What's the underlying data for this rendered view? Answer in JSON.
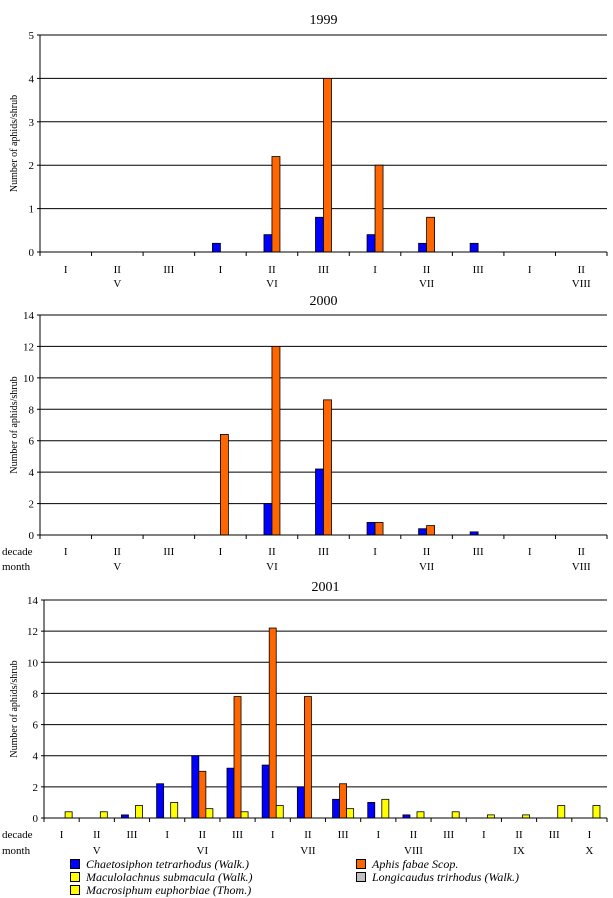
{
  "axis_ylabel": "Number of aphids/shrub",
  "row_labels": {
    "decade": "decade",
    "month": "month"
  },
  "series_info": [
    {
      "name": "Chaetosiphon tetrarhodus (Walk.)",
      "color": "#0000ff"
    },
    {
      "name": "Aphis fabae Scop.",
      "color": "#ff6600"
    },
    {
      "name": "Maculolachnus submacula (Walk.)",
      "color": "#ffff00"
    },
    {
      "name": "Longicaudus trirhodus (Walk.)",
      "color": "#c0c0c0"
    },
    {
      "name": "Macrosiphum euphorbiae (Thom.)",
      "color": "#ffff00"
    }
  ],
  "legend": [
    {
      "label": "Chaetosiphon tetrarhodus (Walk.)",
      "color": "#0000ff"
    },
    {
      "label": "Aphis fabae Scop.",
      "color": "#ff6600"
    },
    {
      "label": "Maculolachnus submacula (Walk.)",
      "color": "#ffff00"
    },
    {
      "label": "Longicaudus trirhodus (Walk.)",
      "color": "#c0c0c0"
    },
    {
      "label": "Macrosiphum euphorbiae (Thom.)",
      "color": "#ffff00"
    }
  ],
  "chart_data": [
    {
      "type": "bar",
      "title": "1999",
      "ylabel": "Number of aphids/shrub",
      "ylim": [
        0,
        5
      ],
      "yticks": [
        0,
        1,
        2,
        3,
        4,
        5
      ],
      "grid": true,
      "categories": [
        "I",
        "II",
        "III",
        "I",
        "II",
        "III",
        "I",
        "II",
        "III",
        "I",
        "II"
      ],
      "months": [
        {
          "label": "V",
          "index": 1
        },
        {
          "label": "VI",
          "index": 4
        },
        {
          "label": "VII",
          "index": 7
        },
        {
          "label": "VIII",
          "index": 10
        }
      ],
      "show_row_labels": false,
      "series": [
        {
          "series": 0,
          "values": [
            0,
            0,
            0,
            0.2,
            0.4,
            0.8,
            0.4,
            0.2,
            0.2,
            0,
            0
          ]
        },
        {
          "series": 1,
          "values": [
            0,
            0,
            0,
            0,
            2.2,
            4.0,
            2.0,
            0.8,
            0,
            0,
            0
          ]
        }
      ]
    },
    {
      "type": "bar",
      "title": "2000",
      "ylabel": "Number of aphids/shrub",
      "ylim": [
        0,
        14
      ],
      "yticks": [
        0,
        2,
        4,
        6,
        8,
        10,
        12,
        14
      ],
      "grid": true,
      "categories": [
        "I",
        "II",
        "III",
        "I",
        "II",
        "III",
        "I",
        "II",
        "III",
        "I",
        "II"
      ],
      "months": [
        {
          "label": "V",
          "index": 1
        },
        {
          "label": "VI",
          "index": 4
        },
        {
          "label": "VII",
          "index": 7
        },
        {
          "label": "VIII",
          "index": 10
        }
      ],
      "show_row_labels": true,
      "series": [
        {
          "series": 0,
          "values": [
            0,
            0,
            0,
            0,
            2.0,
            4.2,
            0.8,
            0.4,
            0.2,
            0,
            0
          ]
        },
        {
          "series": 1,
          "values": [
            0,
            0,
            0,
            6.4,
            12.0,
            8.6,
            0.8,
            0.6,
            0,
            0,
            0
          ]
        }
      ]
    },
    {
      "type": "bar",
      "title": "2001",
      "ylabel": "Number of aphids/shrub",
      "ylim": [
        0,
        14
      ],
      "yticks": [
        0,
        2,
        4,
        6,
        8,
        10,
        12,
        14
      ],
      "grid": true,
      "categories": [
        "I",
        "II",
        "III",
        "I",
        "II",
        "III",
        "I",
        "II",
        "III",
        "I",
        "II",
        "III",
        "I",
        "II",
        "III",
        "I"
      ],
      "months": [
        {
          "label": "V",
          "index": 1
        },
        {
          "label": "VI",
          "index": 4
        },
        {
          "label": "VII",
          "index": 7
        },
        {
          "label": "VIII",
          "index": 10
        },
        {
          "label": "IX",
          "index": 13
        },
        {
          "label": "X",
          "index": 15
        }
      ],
      "show_row_labels": true,
      "series": [
        {
          "series": 0,
          "values": [
            0,
            0,
            0.2,
            2.2,
            4.0,
            3.2,
            3.4,
            2.0,
            1.2,
            1.0,
            0.2,
            0,
            0,
            0,
            0,
            0
          ]
        },
        {
          "series": 1,
          "values": [
            0,
            0,
            0,
            0,
            3.0,
            7.8,
            12.2,
            7.8,
            2.2,
            0,
            0,
            0,
            0,
            0,
            0,
            0
          ]
        },
        {
          "series": 2,
          "values": [
            0.4,
            0.4,
            0.8,
            1.0,
            0.6,
            0.4,
            0.8,
            0,
            0.6,
            1.2,
            0.4,
            0.4,
            0.2,
            0.2,
            0.8,
            0.8
          ]
        }
      ]
    }
  ]
}
